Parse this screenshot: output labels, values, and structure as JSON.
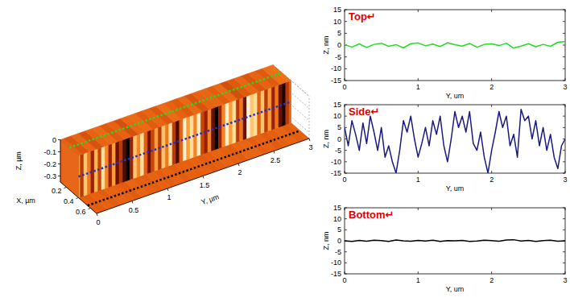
{
  "chart_data": [
    {
      "type": "surface3d",
      "xlabel": "X, µm",
      "ylabel": "Y, µm",
      "zlabel": "Z, µm",
      "xlim": [
        0.1,
        0.7
      ],
      "ylim": [
        0,
        3
      ],
      "zlim": [
        -0.35,
        0
      ],
      "xticks": [
        0.2,
        0.4,
        0.6
      ],
      "yticks": [
        0,
        0.5,
        1,
        1.5,
        2,
        2.5,
        3
      ],
      "zticks": [
        0,
        -0.1,
        -0.2,
        -0.3
      ]
    },
    {
      "type": "line",
      "title": "Top↵",
      "xlabel": "Y, um",
      "ylabel": "Z, nm",
      "color": "#22dd22",
      "x": [
        0,
        0.1,
        0.2,
        0.3,
        0.4,
        0.5,
        0.6,
        0.7,
        0.8,
        0.9,
        1,
        1.1,
        1.2,
        1.3,
        1.4,
        1.5,
        1.6,
        1.7,
        1.8,
        1.9,
        2,
        2.1,
        2.2,
        2.3,
        2.4,
        2.5,
        2.6,
        2.7,
        2.8,
        2.9,
        3
      ],
      "values": [
        0.2,
        -0.8,
        0.5,
        -1,
        0.3,
        0.8,
        -0.5,
        0.2,
        -1.2,
        0.6,
        0.9,
        -0.3,
        0.4,
        -0.6,
        1,
        0.2,
        -0.4,
        0.7,
        -0.9,
        0.3,
        0.5,
        -0.2,
        0.8,
        -1.3,
        -0.4,
        0.6,
        -0.7,
        0.3,
        -0.5,
        1.2,
        1.5
      ],
      "xlim": [
        0,
        3
      ],
      "ylim": [
        -15,
        15
      ],
      "xticks": [
        0,
        1,
        2,
        3
      ],
      "yticks": [
        -15,
        -10,
        -5,
        0,
        5,
        10,
        15
      ]
    },
    {
      "type": "line",
      "title": "Side↵",
      "xlabel": "Y, um",
      "ylabel": "Z, nm",
      "color": "#1a1a80",
      "x": [
        0,
        0.05,
        0.1,
        0.15,
        0.2,
        0.25,
        0.3,
        0.35,
        0.4,
        0.45,
        0.5,
        0.55,
        0.6,
        0.65,
        0.7,
        0.75,
        0.8,
        0.85,
        0.9,
        0.95,
        1,
        1.05,
        1.1,
        1.15,
        1.2,
        1.25,
        1.3,
        1.35,
        1.4,
        1.45,
        1.5,
        1.55,
        1.6,
        1.65,
        1.7,
        1.75,
        1.8,
        1.85,
        1.9,
        1.95,
        2,
        2.05,
        2.1,
        2.15,
        2.2,
        2.25,
        2.3,
        2.35,
        2.4,
        2.45,
        2.5,
        2.55,
        2.6,
        2.65,
        2.7,
        2.75,
        2.8,
        2.85,
        2.9,
        2.95,
        3
      ],
      "values": [
        5,
        -3,
        8,
        2,
        -5,
        7,
        -2,
        10,
        3,
        -5,
        5,
        -8,
        -3,
        -10,
        -15,
        -5,
        8,
        3,
        10,
        0,
        -8,
        -2,
        5,
        -3,
        8,
        2,
        10,
        -3,
        -10,
        0,
        12,
        5,
        10,
        3,
        12,
        -2,
        -5,
        3,
        -8,
        -15,
        -5,
        3,
        12,
        5,
        10,
        -3,
        2,
        -8,
        13,
        8,
        10,
        0,
        8,
        -3,
        5,
        -5,
        2,
        -8,
        -13,
        -3,
        0
      ],
      "xlim": [
        0,
        3
      ],
      "ylim": [
        -15,
        15
      ],
      "xticks": [
        0,
        1,
        2,
        3
      ],
      "yticks": [
        -15,
        -10,
        -5,
        0,
        5,
        10,
        15
      ]
    },
    {
      "type": "line",
      "title": "Bottom↵",
      "xlabel": "Y, um",
      "ylabel": "Z, nm",
      "color": "#000000",
      "x": [
        0,
        0.1,
        0.2,
        0.3,
        0.4,
        0.5,
        0.6,
        0.7,
        0.8,
        0.9,
        1,
        1.1,
        1.2,
        1.3,
        1.4,
        1.5,
        1.6,
        1.7,
        1.8,
        1.9,
        2,
        2.1,
        2.2,
        2.3,
        2.4,
        2.5,
        2.6,
        2.7,
        2.8,
        2.9,
        3
      ],
      "values": [
        0,
        -0.3,
        0.2,
        -0.2,
        0.3,
        0.1,
        -0.3,
        0.4,
        0,
        -0.2,
        0.2,
        -0.1,
        0.3,
        -0.3,
        0.1,
        0,
        0.2,
        -0.3,
        -0.1,
        0.3,
        0.1,
        -0.2,
        0.4,
        0.5,
        -0.1,
        0.2,
        -0.3,
        0.1,
        0.3,
        -0.2,
        0
      ],
      "xlim": [
        0,
        3
      ],
      "ylim": [
        -15,
        15
      ],
      "xticks": [
        0,
        1,
        2,
        3
      ],
      "yticks": [
        -15,
        -10,
        -5,
        0,
        5,
        10,
        15
      ]
    }
  ]
}
